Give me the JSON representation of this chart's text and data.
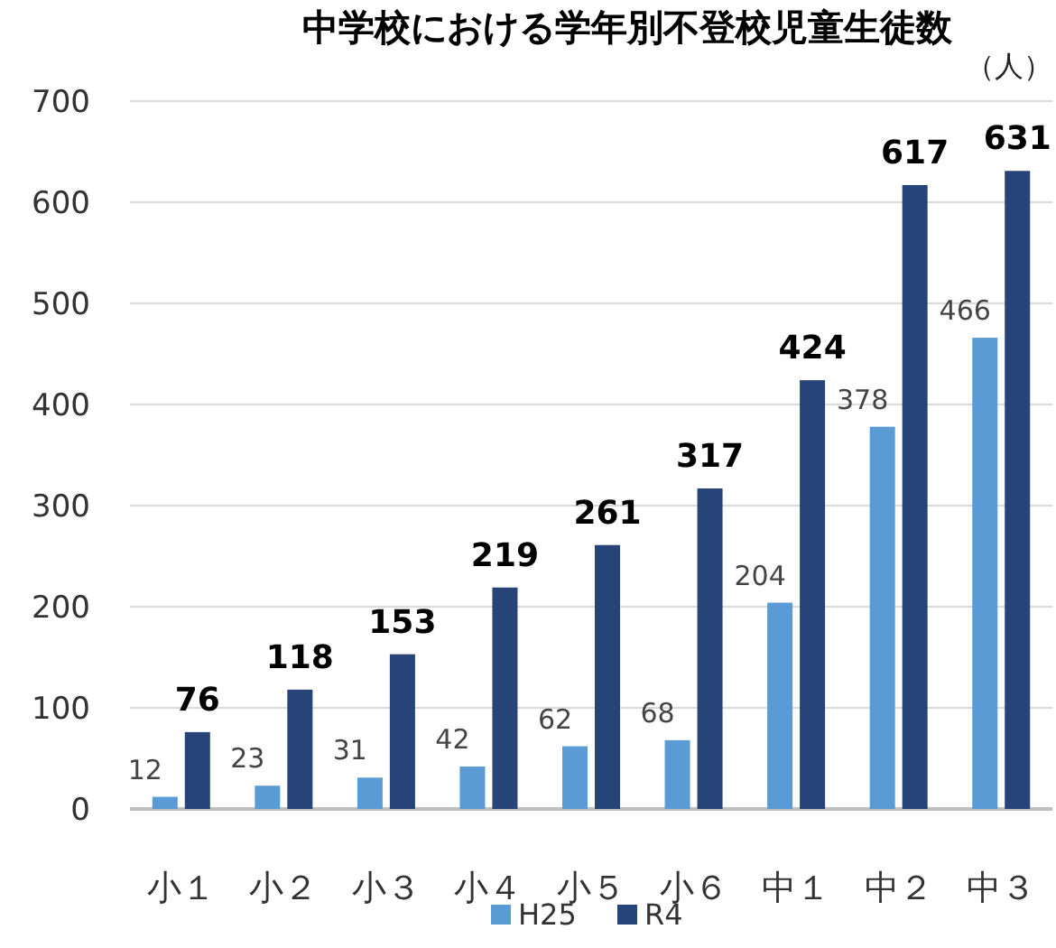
{
  "chart_data": {
    "type": "bar",
    "title": "中学校における学年別不登校児童生徒数",
    "ylabel": "（人）",
    "categories": [
      "小１",
      "小２",
      "小３",
      "小４",
      "小５",
      "小６",
      "中１",
      "中２",
      "中３"
    ],
    "series": [
      {
        "name": "H25",
        "color": "#5b9bd5",
        "values": [
          12,
          23,
          31,
          42,
          62,
          68,
          204,
          378,
          466
        ]
      },
      {
        "name": "R4",
        "color": "#264478",
        "values": [
          76,
          118,
          153,
          219,
          261,
          317,
          424,
          617,
          631
        ]
      }
    ],
    "ylim": [
      0,
      700
    ],
    "yticks": [
      0,
      100,
      200,
      300,
      400,
      500,
      600,
      700
    ],
    "grid": "y",
    "legend": "bottom",
    "data_labels": true
  }
}
